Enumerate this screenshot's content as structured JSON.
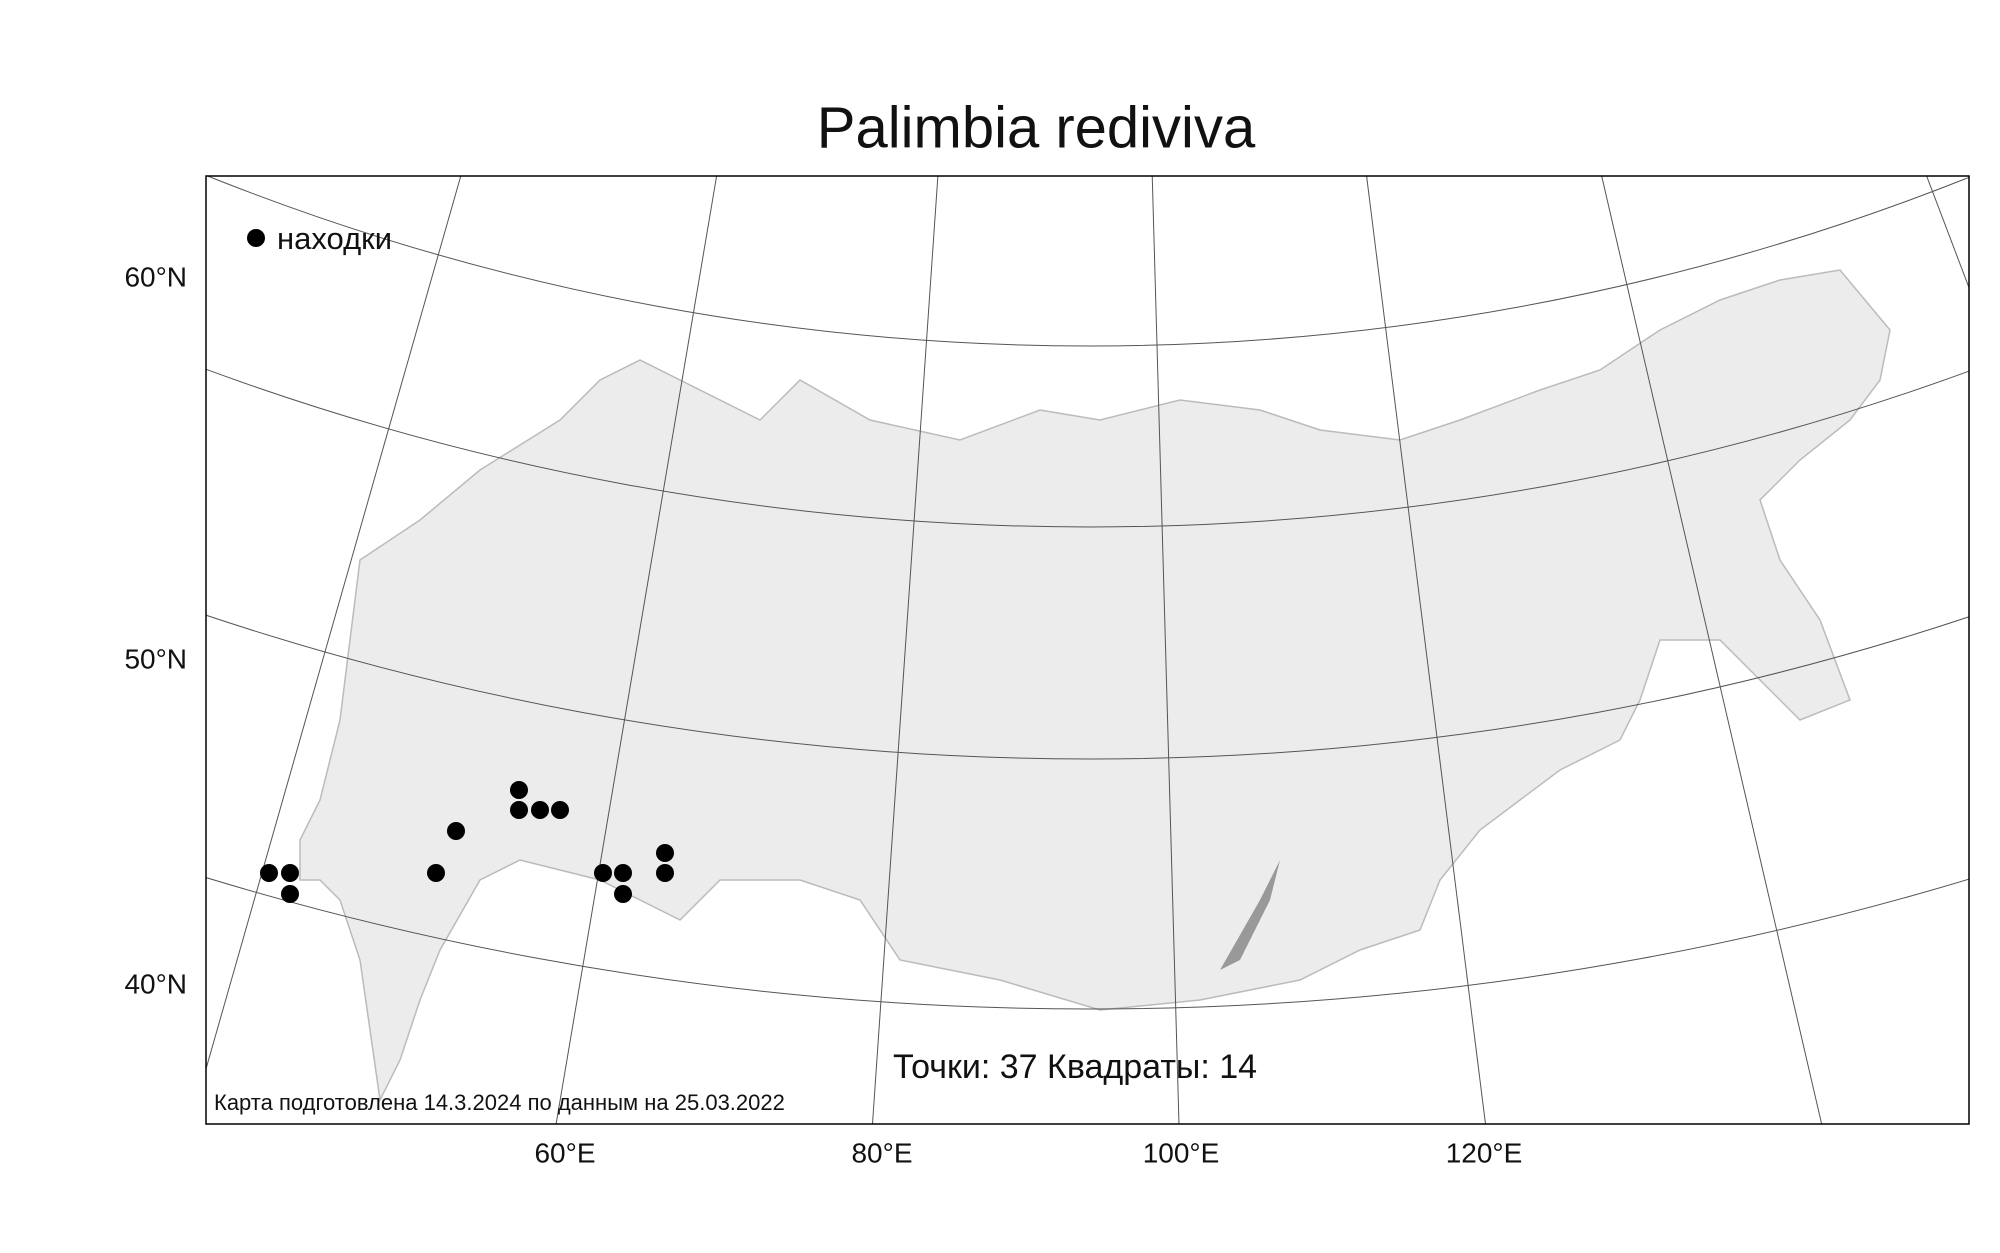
{
  "title": "Palimbia rediviva",
  "legend": {
    "label": "находки"
  },
  "axes": {
    "lat": [
      "60°N",
      "50°N",
      "40°N"
    ],
    "lon": [
      "60°E",
      "80°E",
      "100°E",
      "120°E"
    ]
  },
  "stats": "Точки: 37 Квадраты: 14",
  "footer": "Карта подготовлена 14.3.2024 по данным на 25.03.2022"
}
